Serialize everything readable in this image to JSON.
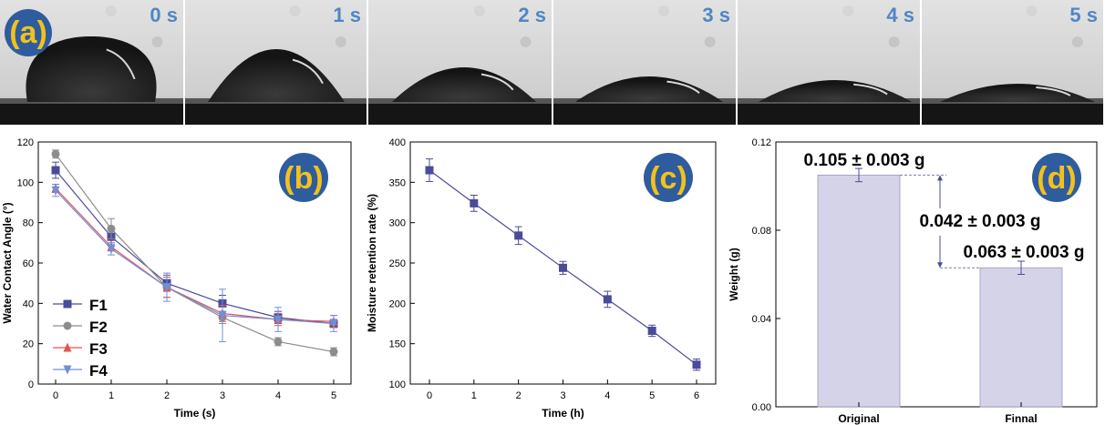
{
  "panel_a": {
    "label": "(a)",
    "frames": [
      {
        "time": "0 s",
        "contact_angle": 114
      },
      {
        "time": "1 s",
        "contact_angle": 77
      },
      {
        "time": "2 s",
        "contact_angle": 50
      },
      {
        "time": "3 s",
        "contact_angle": 34
      },
      {
        "time": "4 s",
        "contact_angle": 24
      },
      {
        "time": "5 s",
        "contact_angle": 16
      }
    ]
  },
  "chart_data": [
    {
      "panel": "(b)",
      "type": "line",
      "xlabel": "Time (s)",
      "ylabel": "Water Contact Angle (°)",
      "xlim": [
        0,
        5
      ],
      "ylim": [
        0,
        120
      ],
      "xticks": [
        0,
        1,
        2,
        3,
        4,
        5
      ],
      "yticks": [
        0,
        20,
        40,
        60,
        80,
        100,
        120
      ],
      "x": [
        0,
        1,
        2,
        3,
        4,
        5
      ],
      "series": [
        {
          "name": "F1",
          "color": "#4b4b9a",
          "marker": "square",
          "values": [
            106,
            73,
            50,
            40,
            33,
            30
          ],
          "errors": [
            4,
            4,
            4,
            4,
            3,
            2
          ]
        },
        {
          "name": "F2",
          "color": "#8c8c8c",
          "marker": "circle",
          "values": [
            114,
            77,
            48,
            33,
            21,
            16
          ],
          "errors": [
            2,
            5,
            5,
            3,
            2,
            2
          ]
        },
        {
          "name": "F3",
          "color": "#e05555",
          "marker": "triangle-up",
          "values": [
            97,
            68,
            48,
            35,
            32,
            31
          ],
          "errors": [
            2,
            2,
            5,
            4,
            3,
            3
          ]
        },
        {
          "name": "F4",
          "color": "#6f8fd6",
          "marker": "triangle-down",
          "values": [
            96,
            67,
            48,
            34,
            32,
            30
          ],
          "errors": [
            3,
            3,
            7,
            13,
            6,
            4
          ]
        }
      ],
      "legend": "bottom-left"
    },
    {
      "panel": "(c)",
      "type": "line",
      "xlabel": "Time (h)",
      "ylabel": "Moisture retention rate (%)",
      "xlim": [
        0,
        6
      ],
      "ylim": [
        100,
        400
      ],
      "xticks": [
        0,
        1,
        2,
        3,
        4,
        5,
        6
      ],
      "yticks": [
        100,
        150,
        200,
        250,
        300,
        350,
        400
      ],
      "x": [
        0,
        1,
        2,
        3,
        4,
        5,
        6
      ],
      "series": [
        {
          "color": "#4b4b9a",
          "marker": "square",
          "values": [
            365,
            324,
            284,
            244,
            205,
            166,
            124
          ],
          "errors": [
            14,
            10,
            11,
            8,
            10,
            7,
            7
          ]
        }
      ]
    },
    {
      "panel": "(d)",
      "type": "bar",
      "xlabel": "",
      "ylabel": "Weight (g)",
      "ylim": [
        0,
        0.12
      ],
      "yticks": [
        0.0,
        0.04,
        0.08,
        0.12
      ],
      "categories": [
        "Original",
        "Finnal"
      ],
      "values": [
        0.105,
        0.063
      ],
      "errors": [
        0.003,
        0.003
      ],
      "bar_color": "#d4d3e8",
      "annotations": {
        "original": "0.105 ± 0.003 g",
        "difference": "0.042 ± 0.003 g",
        "final": "0.063 ± 0.003 g"
      }
    }
  ]
}
